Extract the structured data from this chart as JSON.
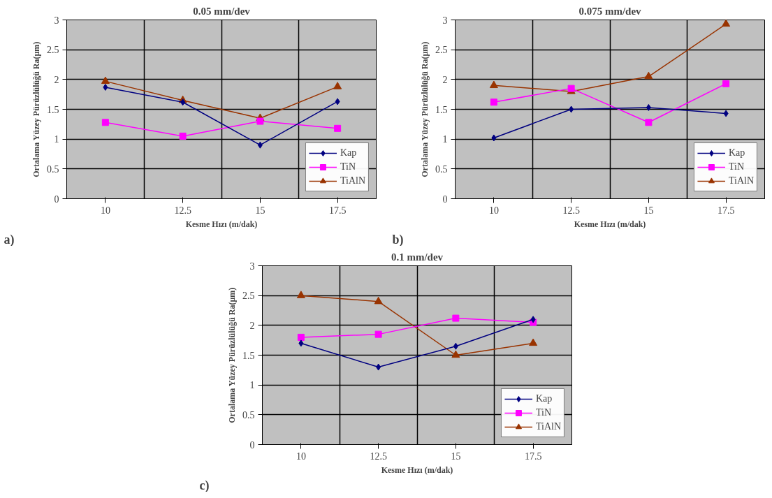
{
  "chart_data": [
    {
      "type": "line",
      "title": "0.05 mm/dev",
      "xlabel": "Kesme Hızı (m/dak)",
      "ylabel": "Ortalama Yüzey Pürüzlülüğü Ra(μm)",
      "categories": [
        "10",
        "12.5",
        "15",
        "17.5"
      ],
      "ylim": [
        0,
        3
      ],
      "yticks": [
        0,
        0.5,
        1,
        1.5,
        2,
        2.5,
        3
      ],
      "grid": true,
      "legend": "bottom right",
      "annotations": [
        "a)"
      ],
      "series": [
        {
          "name": "Kap",
          "color": "#000080",
          "marker": "diamond",
          "values": [
            1.87,
            1.62,
            0.9,
            1.63
          ]
        },
        {
          "name": "TiN",
          "color": "#ff00ff",
          "marker": "square",
          "values": [
            1.28,
            1.05,
            1.3,
            1.18
          ]
        },
        {
          "name": "TiAlN",
          "color": "#993300",
          "marker": "triangle",
          "values": [
            1.97,
            1.65,
            1.35,
            1.88
          ]
        }
      ]
    },
    {
      "type": "line",
      "title": "0.075 mm/dev",
      "xlabel": "Kesme Hızı (m/dak)",
      "ylabel": "Ortalama Yüzey Pürüzlülüğü Ra(μm)",
      "categories": [
        "10",
        "12.5",
        "15",
        "17.5"
      ],
      "ylim": [
        0,
        3
      ],
      "yticks": [
        0,
        0.5,
        1,
        1.5,
        2,
        2.5,
        3
      ],
      "grid": true,
      "legend": "bottom right",
      "annotations": [
        "b)"
      ],
      "series": [
        {
          "name": "Kap",
          "color": "#000080",
          "marker": "diamond",
          "values": [
            1.02,
            1.5,
            1.53,
            1.43
          ]
        },
        {
          "name": "TiN",
          "color": "#ff00ff",
          "marker": "square",
          "values": [
            1.62,
            1.85,
            1.28,
            1.93
          ]
        },
        {
          "name": "TiAlN",
          "color": "#993300",
          "marker": "triangle",
          "values": [
            1.9,
            1.8,
            2.05,
            2.93
          ]
        }
      ]
    },
    {
      "type": "line",
      "title": "0.1 mm/dev",
      "xlabel": "Kesme Hızı (m/dak)",
      "ylabel": "Ortalama Yüzey Pürüzlülüğü Ra(μm)",
      "categories": [
        "10",
        "12.5",
        "15",
        "17.5"
      ],
      "ylim": [
        0,
        3
      ],
      "yticks": [
        0,
        0.5,
        1,
        1.5,
        2,
        2.5,
        3
      ],
      "grid": true,
      "legend": "bottom right",
      "annotations": [
        "c)"
      ],
      "series": [
        {
          "name": "Kap",
          "color": "#000080",
          "marker": "diamond",
          "values": [
            1.7,
            1.3,
            1.65,
            2.1
          ]
        },
        {
          "name": "TiN",
          "color": "#ff00ff",
          "marker": "square",
          "values": [
            1.8,
            1.85,
            2.12,
            2.05
          ]
        },
        {
          "name": "TiAlN",
          "color": "#993300",
          "marker": "triangle",
          "values": [
            2.5,
            2.4,
            1.5,
            1.7
          ]
        }
      ]
    }
  ]
}
